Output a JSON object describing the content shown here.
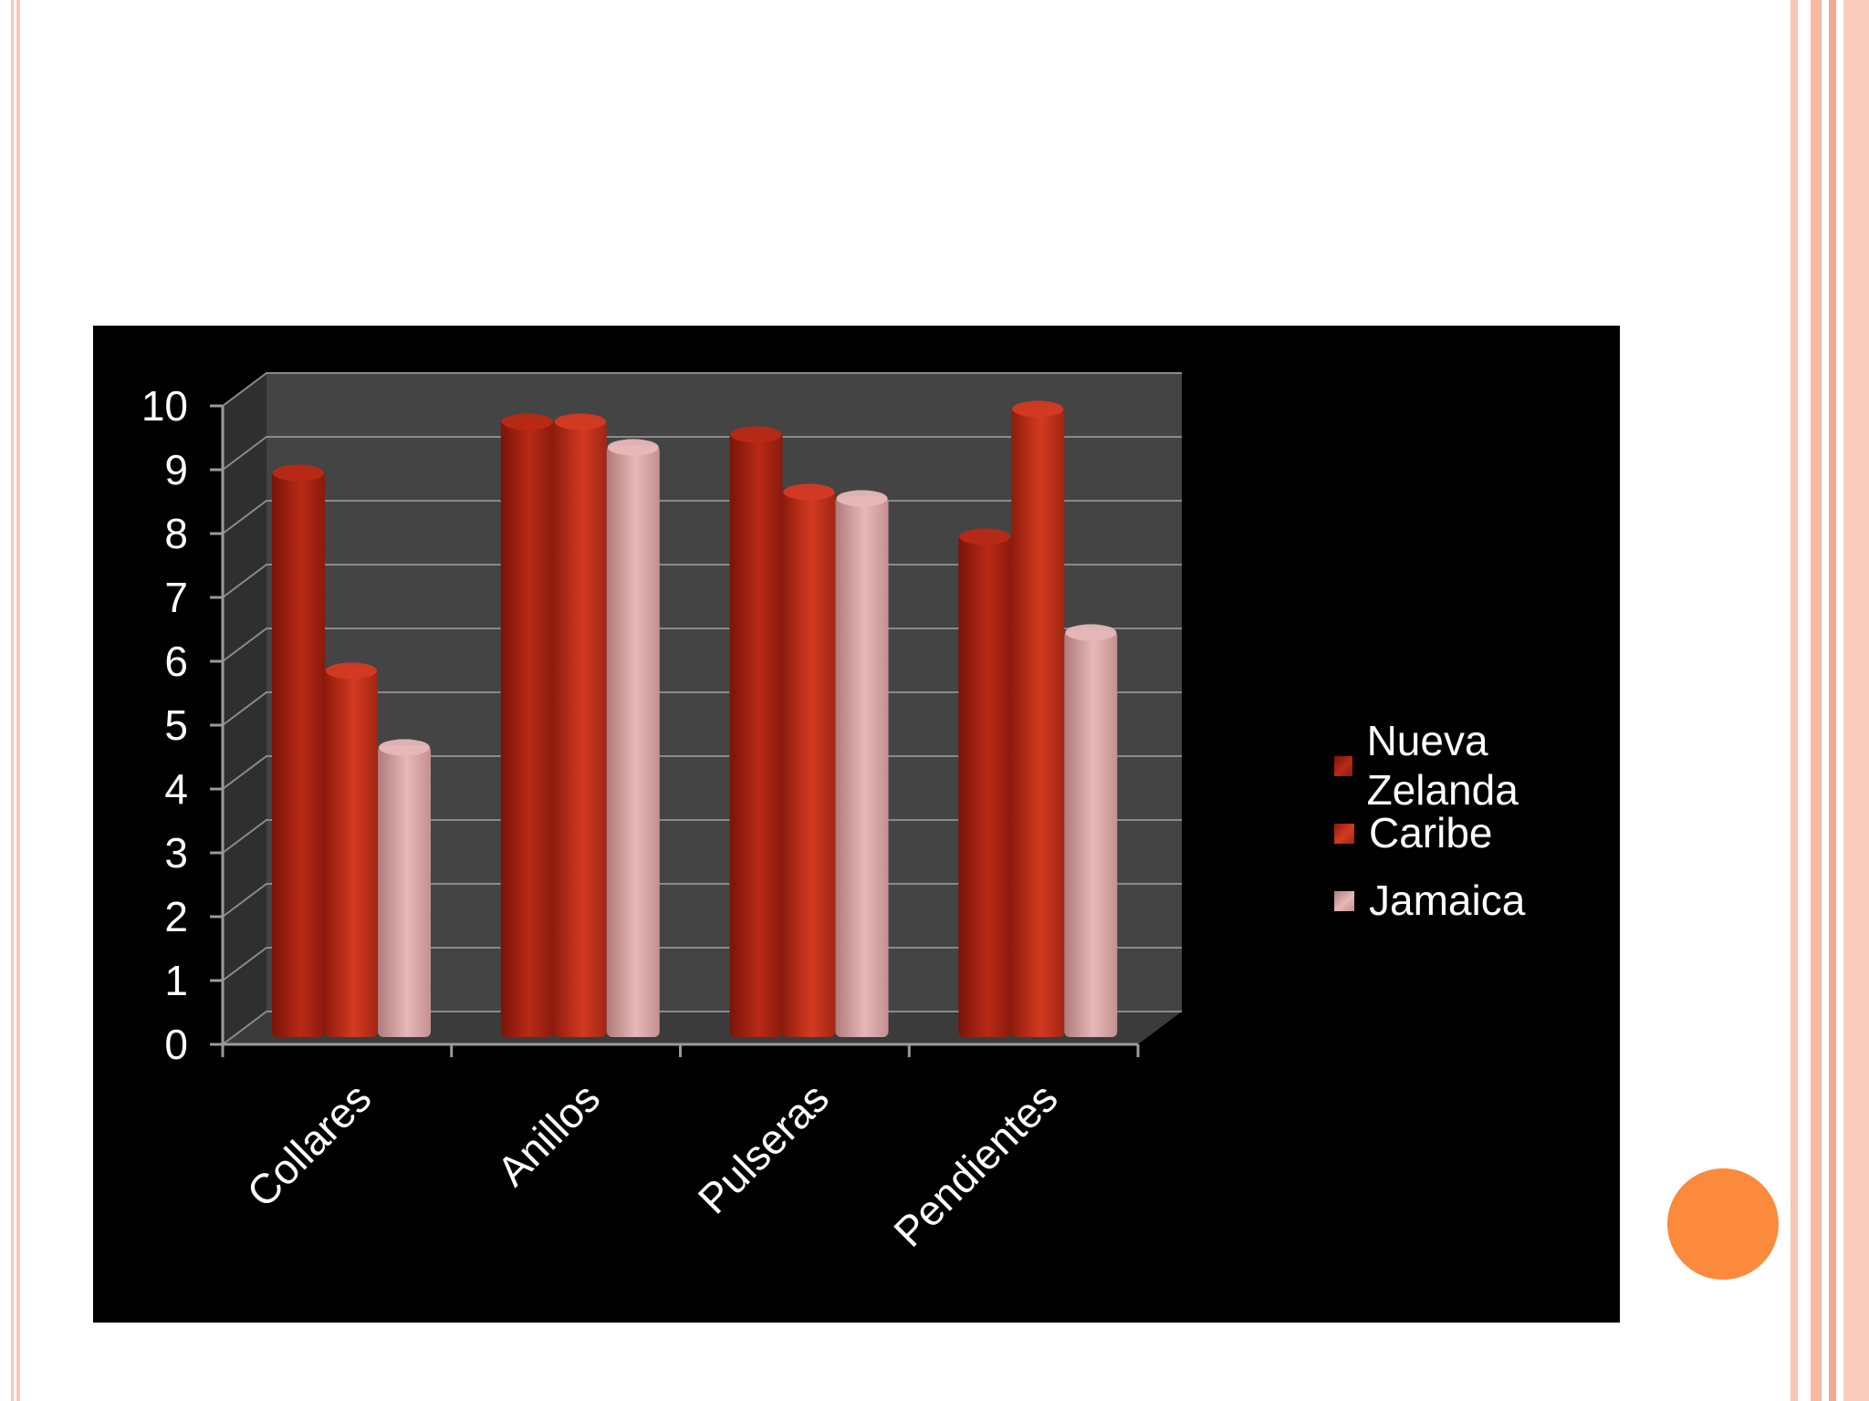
{
  "chart_data": {
    "type": "bar",
    "categories": [
      "Collares",
      "Anillos",
      "Pulseras",
      "Pendientes"
    ],
    "series": [
      {
        "name": "Nueva Zelanda",
        "values": [
          8.8,
          9.6,
          9.4,
          7.8
        ]
      },
      {
        "name": "Caribe",
        "values": [
          5.7,
          9.6,
          8.5,
          9.8
        ]
      },
      {
        "name": "Jamaica",
        "values": [
          4.5,
          9.2,
          8.4,
          6.3
        ]
      }
    ],
    "title": "",
    "xlabel": "",
    "ylabel": "",
    "ylim": [
      0,
      10
    ],
    "yticks": [
      "0",
      "1",
      "2",
      "3",
      "4",
      "5",
      "6",
      "7",
      "8",
      "9",
      "10"
    ],
    "grid": true,
    "legend_position": "right",
    "colors": [
      "#b02614",
      "#c8321c",
      "#d6a4a4"
    ],
    "background": "#000000"
  },
  "colors": {
    "accent_dot": "#fb8a3c",
    "slide_border": "#f6c9b8"
  }
}
